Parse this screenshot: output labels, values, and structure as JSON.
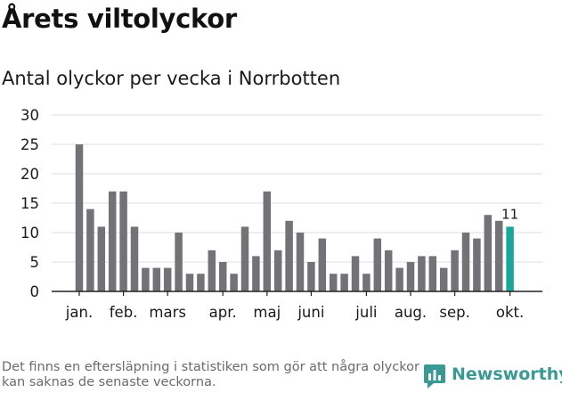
{
  "title": "Årets viltolyckor",
  "subtitle": "Antal olyckor per vecka i Norrbotten",
  "footnote": "Det finns en eftersläpning i statistiken som gör att några olyckor kan saknas de senaste veckorna.",
  "logo": {
    "text": "Newsworthy"
  },
  "colors": {
    "bar": "#737277",
    "highlight": "#1aa69b",
    "grid": "#dddddd",
    "axis": "#222222",
    "logo": "#3a9a93"
  },
  "chart_data": {
    "type": "bar",
    "title": "Antal olyckor per vecka i Norrbotten",
    "xlabel": "",
    "ylabel": "",
    "ylim": [
      0,
      30
    ],
    "yticks": [
      0,
      5,
      10,
      15,
      20,
      25,
      30
    ],
    "weeks": [
      1,
      2,
      3,
      4,
      5,
      6,
      7,
      8,
      9,
      10,
      11,
      12,
      13,
      14,
      15,
      16,
      17,
      18,
      19,
      20,
      21,
      22,
      23,
      24,
      25,
      26,
      27,
      28,
      29,
      30,
      31,
      32,
      33,
      34,
      35,
      36,
      37,
      38,
      39,
      40
    ],
    "values": [
      25,
      14,
      11,
      17,
      17,
      11,
      4,
      4,
      4,
      10,
      3,
      3,
      7,
      5,
      3,
      11,
      6,
      17,
      7,
      12,
      10,
      5,
      9,
      3,
      3,
      6,
      3,
      9,
      7,
      4,
      5,
      6,
      6,
      4,
      7,
      10,
      9,
      13,
      12,
      11
    ],
    "month_labels": [
      {
        "label": "jan.",
        "week": 1
      },
      {
        "label": "feb.",
        "week": 5
      },
      {
        "label": "mars",
        "week": 9
      },
      {
        "label": "apr.",
        "week": 14
      },
      {
        "label": "maj",
        "week": 18
      },
      {
        "label": "juni",
        "week": 22
      },
      {
        "label": "juli",
        "week": 27
      },
      {
        "label": "aug.",
        "week": 31
      },
      {
        "label": "sep.",
        "week": 35
      },
      {
        "label": "okt.",
        "week": 40
      }
    ],
    "highlight_week": 40,
    "annotation": {
      "week": 40,
      "text": "11"
    },
    "grid": true,
    "legend": "none"
  }
}
